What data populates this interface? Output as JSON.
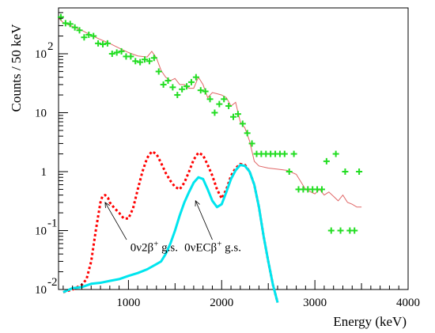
{
  "chart_data": {
    "type": "scatter",
    "xlabel": "Energy (keV)",
    "ylabel": "Counts / 50 keV",
    "xlim": [
      250,
      4000
    ],
    "ylim": [
      0.01,
      600
    ],
    "yscale": "log",
    "grid": false,
    "x_ticks": [
      {
        "value": 1000,
        "label": "1000"
      },
      {
        "value": 2000,
        "label": "2000"
      },
      {
        "value": 3000,
        "label": "3000"
      },
      {
        "value": 4000,
        "label": "4000"
      }
    ],
    "y_ticks": [
      {
        "value": 0.01,
        "base": "10",
        "exp": "-2"
      },
      {
        "value": 0.1,
        "base": "10",
        "exp": "-1"
      },
      {
        "value": 1,
        "base": "1",
        "exp": ""
      },
      {
        "value": 10,
        "base": "10",
        "exp": ""
      },
      {
        "value": 100,
        "base": "10",
        "exp": "2"
      }
    ],
    "data_points": {
      "color": "#22dd22",
      "x": [
        275,
        325,
        375,
        425,
        475,
        525,
        575,
        625,
        675,
        725,
        775,
        825,
        875,
        925,
        975,
        1025,
        1075,
        1125,
        1175,
        1225,
        1275,
        1325,
        1375,
        1425,
        1475,
        1525,
        1575,
        1625,
        1675,
        1725,
        1775,
        1825,
        1875,
        1925,
        1975,
        2025,
        2075,
        2125,
        2175,
        2225,
        2275,
        2325,
        2375,
        2425,
        2475,
        2525,
        2575,
        2625,
        2675,
        2725,
        2775,
        2825,
        2875,
        2925,
        2975,
        3025,
        3075,
        3125,
        3175,
        3225,
        3275,
        3325,
        3375,
        3425,
        3475
      ],
      "y": [
        420,
        330,
        320,
        280,
        250,
        190,
        210,
        200,
        150,
        145,
        150,
        100,
        105,
        110,
        90,
        90,
        75,
        72,
        80,
        75,
        85,
        50,
        30,
        35,
        27,
        20,
        25,
        28,
        33,
        40,
        24,
        23,
        17,
        10,
        14,
        17,
        13,
        8.5,
        9.5,
        6.5,
        4.5,
        3,
        2,
        2,
        2,
        2,
        2,
        2,
        2,
        1,
        2,
        0.5,
        0.5,
        0.5,
        0.5,
        0.5,
        0.5,
        1.5,
        0.1,
        2,
        0.1,
        1,
        0.1,
        0.1,
        1
      ]
    },
    "background_curve": {
      "color": "#e06666",
      "x": [
        250,
        300,
        400,
        500,
        600,
        700,
        800,
        900,
        1000,
        1100,
        1200,
        1250,
        1300,
        1350,
        1400,
        1450,
        1500,
        1550,
        1600,
        1650,
        1700,
        1750,
        1800,
        1850,
        1900,
        1950,
        2000,
        2050,
        2100,
        2150,
        2200,
        2250,
        2300,
        2350,
        2400,
        2500,
        2600,
        2700,
        2800,
        2900,
        3000,
        3050,
        3100,
        3150,
        3200,
        3250,
        3300,
        3350,
        3400,
        3450,
        3500
      ],
      "y": [
        400,
        340,
        290,
        250,
        205,
        175,
        150,
        125,
        105,
        92,
        88,
        110,
        85,
        52,
        40,
        35,
        38,
        30,
        30,
        26,
        26,
        40,
        30,
        18,
        22,
        21,
        20,
        18,
        13,
        15,
        7,
        5.5,
        3.3,
        1.5,
        1.25,
        1.15,
        1.1,
        1.05,
        0.9,
        0.5,
        0.42,
        0.5,
        0.4,
        0.45,
        0.38,
        0.32,
        0.4,
        0.3,
        0.28,
        0.25,
        0.25
      ]
    },
    "series": [
      {
        "name": "0ν2β⁺ g.s.",
        "color": "#ff0000",
        "style": "dotted",
        "x": [
          300,
          400,
          500,
          550,
          600,
          650,
          700,
          720,
          750,
          780,
          800,
          850,
          900,
          950,
          1000,
          1050,
          1100,
          1150,
          1200,
          1250,
          1300,
          1350,
          1400,
          1450,
          1500,
          1550,
          1600,
          1650,
          1700,
          1750,
          1800,
          1850,
          1900,
          1950,
          2000,
          2050,
          2100,
          2150,
          2200,
          2250,
          2300,
          2350,
          2400,
          2450,
          2500,
          2550,
          2600
        ],
        "y": [
          0.009,
          0.01,
          0.012,
          0.015,
          0.03,
          0.1,
          0.3,
          0.38,
          0.4,
          0.36,
          0.3,
          0.24,
          0.2,
          0.16,
          0.16,
          0.24,
          0.5,
          1.0,
          1.7,
          2.2,
          2.0,
          1.4,
          0.95,
          0.7,
          0.55,
          0.5,
          0.65,
          1.0,
          1.6,
          2.1,
          1.9,
          1.3,
          0.85,
          0.5,
          0.35,
          0.5,
          0.85,
          1.15,
          1.35,
          1.3,
          1.0,
          0.6,
          0.25,
          0.08,
          0.03,
          0.012,
          0.006
        ]
      },
      {
        "name": "0νECβ⁺ g.s.",
        "color": "#00e5ee",
        "style": "solid",
        "x": [
          300,
          400,
          500,
          600,
          700,
          800,
          900,
          1000,
          1100,
          1200,
          1300,
          1350,
          1400,
          1450,
          1500,
          1550,
          1600,
          1650,
          1700,
          1750,
          1800,
          1850,
          1900,
          1950,
          2000,
          2050,
          2100,
          2150,
          2200,
          2250,
          2300,
          2350,
          2400,
          2450,
          2500,
          2550,
          2600
        ],
        "y": [
          0.009,
          0.0105,
          0.011,
          0.0125,
          0.013,
          0.014,
          0.015,
          0.017,
          0.019,
          0.022,
          0.027,
          0.03,
          0.04,
          0.06,
          0.1,
          0.18,
          0.3,
          0.45,
          0.65,
          0.8,
          0.75,
          0.5,
          0.32,
          0.25,
          0.28,
          0.45,
          0.75,
          1.05,
          1.3,
          1.25,
          1.0,
          0.6,
          0.25,
          0.08,
          0.03,
          0.012,
          0.006
        ]
      }
    ],
    "annotations": [
      {
        "prefix": "0ν2β",
        "sup": "+",
        "suffix": " g.s.",
        "arrow_to": [
          750,
          0.3
        ],
        "arrow_from": [
          980,
          0.07
        ],
        "text_at": [
          1020,
          0.045
        ]
      },
      {
        "prefix": "0νECβ",
        "sup": "+",
        "suffix": " g.s.",
        "arrow_to": [
          1720,
          0.32
        ],
        "arrow_from": [
          1900,
          0.07
        ],
        "text_at": [
          1600,
          0.045
        ]
      }
    ]
  }
}
